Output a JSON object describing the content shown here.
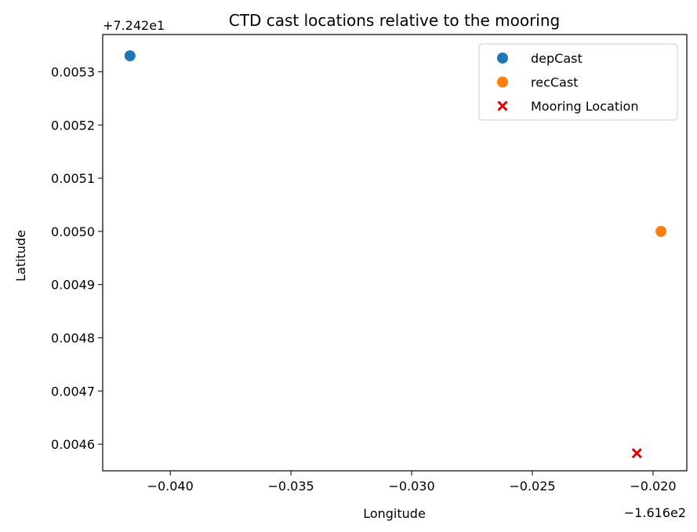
{
  "chart_data": {
    "type": "scatter",
    "title": "CTD cast locations relative to the mooring",
    "xlabel": "Longitude",
    "ylabel": "Latitude",
    "x_offset_label": "−1.616e2",
    "y_offset_label": "+7.242e1",
    "xlim": [
      -0.0428,
      -0.0186
    ],
    "ylim": [
      0.00455,
      0.00537
    ],
    "x_ticks": [
      -0.04,
      -0.035,
      -0.03,
      -0.025,
      -0.02
    ],
    "x_tick_labels": [
      "−0.040",
      "−0.035",
      "−0.030",
      "−0.025",
      "−0.020"
    ],
    "y_ticks": [
      0.0046,
      0.0047,
      0.0048,
      0.0049,
      0.005,
      0.0051,
      0.0052,
      0.0053
    ],
    "y_tick_labels": [
      "0.0046",
      "0.0047",
      "0.0048",
      "0.0049",
      "0.0050",
      "0.0051",
      "0.0052",
      "0.0053"
    ],
    "grid": false,
    "legend_position": "top-right",
    "series": [
      {
        "name": "depCast",
        "marker": "circle",
        "color": "#1f77b4",
        "points": [
          {
            "x": -0.04167,
            "y": 0.00533
          }
        ]
      },
      {
        "name": "recCast",
        "marker": "circle",
        "color": "#ff7f0e",
        "points": [
          {
            "x": -0.01967,
            "y": 0.005
          }
        ]
      },
      {
        "name": "Mooring Location",
        "marker": "x",
        "color": "#e00000",
        "points": [
          {
            "x": -0.02067,
            "y": 0.004583
          }
        ]
      }
    ]
  }
}
